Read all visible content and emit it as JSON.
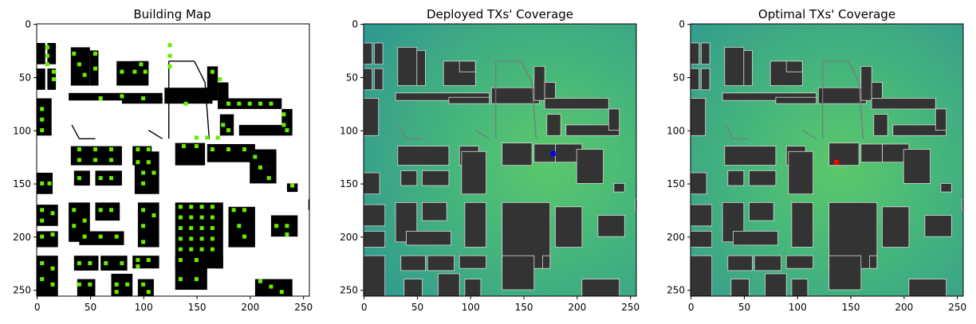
{
  "chart_data": [
    {
      "type": "heatmap",
      "title": "Building Map",
      "xlim": [
        0,
        256
      ],
      "ylim": [
        256,
        0
      ],
      "xticks": [
        0,
        50,
        100,
        150,
        200,
        250
      ],
      "yticks": [
        0,
        50,
        100,
        150,
        200,
        250
      ],
      "colors": {
        "building": "#000000",
        "free_space": "#ffffff",
        "candidate_site": "#66ee00"
      },
      "buildings": [
        [
          0,
          18,
          8,
          38
        ],
        [
          10,
          18,
          18,
          38
        ],
        [
          0,
          42,
          8,
          62
        ],
        [
          10,
          42,
          18,
          62
        ],
        [
          32,
          22,
          50,
          58
        ],
        [
          50,
          25,
          58,
          58
        ],
        [
          75,
          35,
          105,
          58
        ],
        [
          90,
          35,
          105,
          45
        ],
        [
          30,
          65,
          118,
          72
        ],
        [
          80,
          69,
          118,
          75
        ],
        [
          0,
          70,
          14,
          105
        ],
        [
          120,
          60,
          165,
          75
        ],
        [
          160,
          40,
          170,
          72
        ],
        [
          170,
          55,
          180,
          70
        ],
        [
          170,
          70,
          230,
          80
        ],
        [
          172,
          85,
          185,
          105
        ],
        [
          190,
          95,
          240,
          105
        ],
        [
          230,
          80,
          240,
          100
        ],
        [
          32,
          115,
          80,
          133
        ],
        [
          90,
          115,
          108,
          133
        ],
        [
          92,
          120,
          115,
          160
        ],
        [
          130,
          112,
          158,
          133
        ],
        [
          160,
          113,
          180,
          130
        ],
        [
          180,
          113,
          205,
          130
        ],
        [
          200,
          118,
          225,
          150
        ],
        [
          35,
          138,
          50,
          152
        ],
        [
          55,
          138,
          80,
          152
        ],
        [
          0,
          140,
          15,
          160
        ],
        [
          235,
          150,
          245,
          158
        ],
        [
          0,
          170,
          20,
          190
        ],
        [
          0,
          195,
          20,
          210
        ],
        [
          30,
          168,
          50,
          205
        ],
        [
          55,
          168,
          78,
          185
        ],
        [
          40,
          195,
          82,
          208
        ],
        [
          95,
          168,
          115,
          210
        ],
        [
          130,
          168,
          175,
          230
        ],
        [
          180,
          172,
          205,
          210
        ],
        [
          220,
          180,
          245,
          200
        ],
        [
          255,
          165,
          256,
          175
        ],
        [
          0,
          218,
          20,
          256
        ],
        [
          35,
          218,
          58,
          232
        ],
        [
          60,
          218,
          85,
          232
        ],
        [
          90,
          218,
          115,
          230
        ],
        [
          130,
          218,
          160,
          250
        ],
        [
          168,
          218,
          175,
          230
        ],
        [
          70,
          235,
          90,
          256
        ],
        [
          38,
          240,
          55,
          256
        ],
        [
          95,
          240,
          110,
          256
        ],
        [
          205,
          240,
          240,
          256
        ]
      ],
      "thin_walls": [
        [
          124,
          35,
          124,
          108
        ],
        [
          124,
          35,
          148,
          35
        ],
        [
          148,
          35,
          158,
          55
        ],
        [
          158,
          55,
          162,
          108
        ],
        [
          33,
          95,
          40,
          108
        ],
        [
          40,
          108,
          55,
          108
        ],
        [
          105,
          100,
          118,
          108
        ]
      ],
      "candidate_sites": [
        [
          10,
          22
        ],
        [
          10,
          30
        ],
        [
          10,
          38
        ],
        [
          16,
          45
        ],
        [
          16,
          52
        ],
        [
          35,
          28
        ],
        [
          40,
          38
        ],
        [
          45,
          48
        ],
        [
          55,
          28
        ],
        [
          55,
          42
        ],
        [
          80,
          45
        ],
        [
          92,
          45
        ],
        [
          102,
          45
        ],
        [
          98,
          38
        ],
        [
          60,
          70
        ],
        [
          80,
          68
        ],
        [
          100,
          70
        ],
        [
          125,
          20
        ],
        [
          125,
          30
        ],
        [
          125,
          40
        ],
        [
          140,
          75
        ],
        [
          150,
          107
        ],
        [
          160,
          107
        ],
        [
          170,
          107
        ],
        [
          165,
          45
        ],
        [
          172,
          52
        ],
        [
          180,
          75
        ],
        [
          190,
          75
        ],
        [
          200,
          75
        ],
        [
          210,
          75
        ],
        [
          220,
          75
        ],
        [
          175,
          95
        ],
        [
          180,
          100
        ],
        [
          232,
          85
        ],
        [
          232,
          95
        ],
        [
          235,
          100
        ],
        [
          5,
          80
        ],
        [
          5,
          90
        ],
        [
          5,
          100
        ],
        [
          40,
          118
        ],
        [
          55,
          118
        ],
        [
          70,
          118
        ],
        [
          40,
          128
        ],
        [
          55,
          128
        ],
        [
          70,
          128
        ],
        [
          95,
          118
        ],
        [
          105,
          118
        ],
        [
          95,
          130
        ],
        [
          105,
          130
        ],
        [
          100,
          140
        ],
        [
          100,
          150
        ],
        [
          110,
          140
        ],
        [
          138,
          115
        ],
        [
          150,
          115
        ],
        [
          165,
          118
        ],
        [
          180,
          118
        ],
        [
          195,
          118
        ],
        [
          205,
          125
        ],
        [
          210,
          135
        ],
        [
          218,
          145
        ],
        [
          40,
          145
        ],
        [
          60,
          145
        ],
        [
          70,
          145
        ],
        [
          5,
          150
        ],
        [
          12,
          150
        ],
        [
          240,
          152
        ],
        [
          5,
          175
        ],
        [
          5,
          185
        ],
        [
          5,
          200
        ],
        [
          15,
          178
        ],
        [
          15,
          198
        ],
        [
          35,
          175
        ],
        [
          35,
          190
        ],
        [
          45,
          185
        ],
        [
          60,
          175
        ],
        [
          70,
          175
        ],
        [
          45,
          200
        ],
        [
          60,
          200
        ],
        [
          75,
          200
        ],
        [
          100,
          175
        ],
        [
          100,
          190
        ],
        [
          110,
          180
        ],
        [
          100,
          205
        ],
        [
          135,
          172
        ],
        [
          145,
          172
        ],
        [
          155,
          172
        ],
        [
          165,
          172
        ],
        [
          135,
          182
        ],
        [
          145,
          182
        ],
        [
          155,
          182
        ],
        [
          165,
          182
        ],
        [
          135,
          192
        ],
        [
          145,
          192
        ],
        [
          155,
          192
        ],
        [
          165,
          192
        ],
        [
          135,
          202
        ],
        [
          145,
          202
        ],
        [
          155,
          202
        ],
        [
          165,
          202
        ],
        [
          135,
          212
        ],
        [
          145,
          212
        ],
        [
          155,
          212
        ],
        [
          165,
          212
        ],
        [
          185,
          175
        ],
        [
          195,
          175
        ],
        [
          190,
          190
        ],
        [
          195,
          200
        ],
        [
          225,
          190
        ],
        [
          235,
          190
        ],
        [
          235,
          198
        ],
        [
          5,
          225
        ],
        [
          5,
          240
        ],
        [
          15,
          230
        ],
        [
          15,
          245
        ],
        [
          40,
          225
        ],
        [
          50,
          225
        ],
        [
          65,
          225
        ],
        [
          80,
          225
        ],
        [
          95,
          222
        ],
        [
          105,
          222
        ],
        [
          95,
          228
        ],
        [
          135,
          222
        ],
        [
          150,
          222
        ],
        [
          135,
          240
        ],
        [
          150,
          240
        ],
        [
          40,
          245
        ],
        [
          50,
          245
        ],
        [
          75,
          245
        ],
        [
          85,
          245
        ],
        [
          75,
          252
        ],
        [
          100,
          245
        ],
        [
          105,
          252
        ],
        [
          210,
          242
        ],
        [
          220,
          247
        ],
        [
          230,
          252
        ]
      ]
    },
    {
      "type": "heatmap",
      "title": "Deployed TXs' Coverage",
      "xlim": [
        0,
        256
      ],
      "ylim": [
        256,
        0
      ],
      "xticks": [
        0,
        50,
        100,
        150,
        200,
        250
      ],
      "yticks": [
        0,
        50,
        100,
        150,
        200,
        250
      ],
      "colormap": "viridis",
      "colors": {
        "coverage": "#47b87a",
        "building": "#333333",
        "tx_marker": "#0000ff"
      },
      "tx": [
        178,
        122
      ]
    },
    {
      "type": "heatmap",
      "title": "Optimal TXs' Coverage",
      "xlim": [
        0,
        256
      ],
      "ylim": [
        256,
        0
      ],
      "xticks": [
        0,
        50,
        100,
        150,
        200,
        250
      ],
      "yticks": [
        0,
        50,
        100,
        150,
        200,
        250
      ],
      "colormap": "viridis",
      "colors": {
        "coverage": "#47b87a",
        "building": "#333333",
        "tx_marker": "#ff0000"
      },
      "tx": [
        137,
        130
      ]
    }
  ]
}
